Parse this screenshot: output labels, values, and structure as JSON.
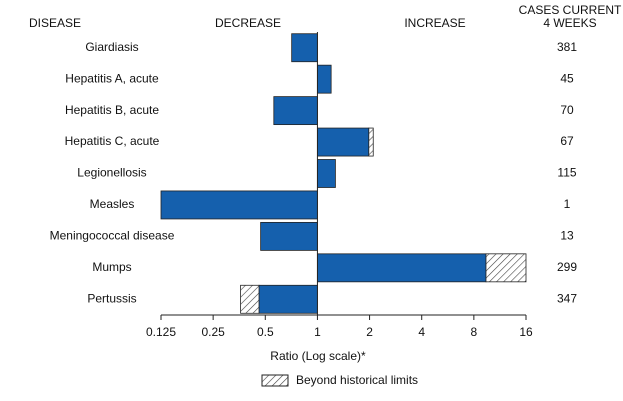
{
  "chart_data": {
    "type": "bar",
    "header_disease": "DISEASE",
    "header_decrease": "DECREASE",
    "header_increase": "INCREASE",
    "cases_header": [
      "CASES CURRENT",
      "4 WEEKS"
    ],
    "categories": [
      "Giardiasis",
      "Hepatitis A, acute",
      "Hepatitis B, acute",
      "Hepatitis C, acute",
      "Legionellosis",
      "Measles",
      "Meningococcal disease",
      "Mumps",
      "Pertussis"
    ],
    "values": [
      0.71,
      1.2,
      0.56,
      2.1,
      1.27,
      0.125,
      0.47,
      16,
      0.36
    ],
    "historical_limits": [
      null,
      null,
      null,
      1.98,
      null,
      null,
      null,
      9.4,
      0.46
    ],
    "cases": [
      381,
      45,
      70,
      67,
      115,
      1,
      13,
      299,
      347
    ],
    "color": "#1560ad",
    "log_scale": true,
    "xlim": [
      0.125,
      16
    ],
    "xticks": [
      0.125,
      0.25,
      0.5,
      1,
      2,
      4,
      8,
      16
    ],
    "x_label": "Ratio (Log scale)*",
    "legend_label": "Beyond historical limits"
  }
}
